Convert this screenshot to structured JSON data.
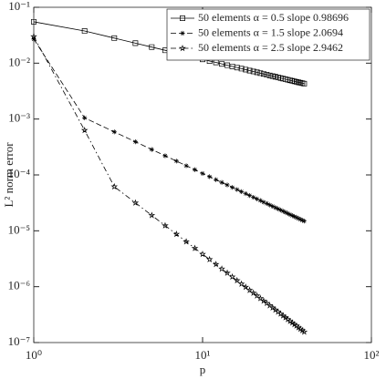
{
  "chart_data": {
    "type": "line",
    "xlabel": "p",
    "ylabel": "L² norm error",
    "xscale": "log",
    "yscale": "log",
    "xlim": [
      1,
      100
    ],
    "ylim": [
      1e-07,
      0.1
    ],
    "xticks": [
      {
        "value": 1,
        "label": "10⁰"
      },
      {
        "value": 10,
        "label": "10¹"
      },
      {
        "value": 100,
        "label": "10²"
      }
    ],
    "yticks": [
      {
        "value": 1e-07,
        "label": "10⁻⁷"
      },
      {
        "value": 1e-06,
        "label": "10⁻⁶"
      },
      {
        "value": 1e-05,
        "label": "10⁻⁵"
      },
      {
        "value": 0.0001,
        "label": "10⁻⁴"
      },
      {
        "value": 0.001,
        "label": "10⁻³"
      },
      {
        "value": 0.01,
        "label": "10⁻²"
      },
      {
        "value": 0.1,
        "label": "10⁻¹"
      }
    ],
    "legend": "upper right",
    "x": [
      1,
      2,
      3,
      4,
      5,
      6,
      7,
      8,
      9,
      10,
      11,
      12,
      13,
      14,
      15,
      16,
      17,
      18,
      19,
      20,
      21,
      22,
      23,
      24,
      25,
      26,
      27,
      28,
      29,
      30,
      31,
      32,
      33,
      34,
      35,
      36,
      37,
      38,
      39,
      40
    ],
    "series": [
      {
        "name": "50 elements α = 0.5 slope 0.98696",
        "color": "#000000",
        "marker": "square",
        "linestyle": "solid",
        "values": [
          0.055,
          0.0377,
          0.0281,
          0.0228,
          0.0194,
          0.017,
          0.0152,
          0.0138,
          0.0127,
          0.0117,
          0.0109,
          0.0103,
          0.0097,
          0.00918,
          0.00875,
          0.00834,
          0.00798,
          0.00766,
          0.00736,
          0.0071,
          0.00686,
          0.00662,
          0.00641,
          0.00622,
          0.00604,
          0.00586,
          0.00571,
          0.00556,
          0.00542,
          0.00528,
          0.00516,
          0.00505,
          0.00493,
          0.00483,
          0.00473,
          0.00463,
          0.00454,
          0.00446,
          0.00438,
          0.0043
        ]
      },
      {
        "name": "50 elements α = 1.5 slope 2.0694",
        "color": "#000000",
        "marker": "asterisk",
        "linestyle": "dashed",
        "values": [
          0.027,
          0.00105,
          0.000589,
          0.000392,
          0.000285,
          0.00022,
          0.000177,
          0.000146,
          0.000124,
          0.000106,
          9.31e-05,
          8.22e-05,
          7.34e-05,
          6.61e-05,
          5.98e-05,
          5.47e-05,
          5.02e-05,
          4.62e-05,
          4.28e-05,
          3.98e-05,
          3.72e-05,
          3.48e-05,
          3.26e-05,
          3.08e-05,
          2.9e-05,
          2.74e-05,
          2.6e-05,
          2.47e-05,
          2.35e-05,
          2.24e-05,
          2.14e-05,
          2.04e-05,
          1.95e-05,
          1.87e-05,
          1.8e-05,
          1.73e-05,
          1.66e-05,
          1.6e-05,
          1.54e-05,
          1.49e-05
        ]
      },
      {
        "name": "50 elements α = 2.5 slope 2.9462",
        "color": "#000000",
        "marker": "pentagram",
        "linestyle": "dashdot",
        "values": [
          0.03,
          0.00063,
          6.17e-05,
          3.17e-05,
          1.89e-05,
          1.24e-05,
          8.71e-06,
          6.4e-06,
          4.88e-06,
          3.82e-06,
          3.07e-06,
          2.51e-06,
          2.08e-06,
          1.76e-06,
          1.5e-06,
          1.29e-06,
          1.12e-06,
          9.84e-07,
          8.65e-07,
          7.71e-07,
          6.89e-07,
          6.19e-07,
          5.57e-07,
          5.06e-07,
          4.59e-07,
          4.2e-07,
          3.85e-07,
          3.54e-07,
          3.27e-07,
          3.02e-07,
          2.81e-07,
          2.6e-07,
          2.42e-07,
          2.26e-07,
          2.11e-07,
          1.99e-07,
          1.86e-07,
          1.75e-07,
          1.65e-07,
          1.55e-07
        ]
      }
    ]
  }
}
